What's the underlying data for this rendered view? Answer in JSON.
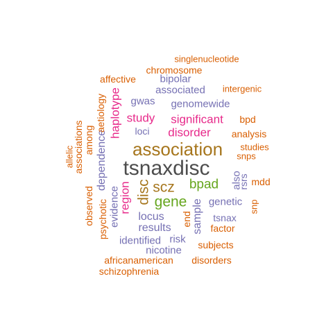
{
  "colors": {
    "dark": "#4d4d4d",
    "gold": "#a6761d",
    "green": "#66a61e",
    "magenta": "#e7298a",
    "purple": "#7570b3",
    "orange": "#d95f02"
  },
  "words": [
    {
      "text": "tsnaxdisc",
      "color": "dark"
    },
    {
      "text": "association",
      "color": "gold"
    },
    {
      "text": "scz",
      "color": "gold"
    },
    {
      "text": "disc",
      "color": "gold"
    },
    {
      "text": "gene",
      "color": "green"
    },
    {
      "text": "bpad",
      "color": "green"
    },
    {
      "text": "disorder",
      "color": "magenta"
    },
    {
      "text": "significant",
      "color": "magenta"
    },
    {
      "text": "study",
      "color": "magenta"
    },
    {
      "text": "haplotype",
      "color": "magenta"
    },
    {
      "text": "region",
      "color": "magenta"
    },
    {
      "text": "dependence",
      "color": "purple"
    },
    {
      "text": "evidence",
      "color": "purple"
    },
    {
      "text": "locus",
      "color": "purple"
    },
    {
      "text": "results",
      "color": "purple"
    },
    {
      "text": "identified",
      "color": "purple"
    },
    {
      "text": "risk",
      "color": "purple"
    },
    {
      "text": "nicotine",
      "color": "purple"
    },
    {
      "text": "sample",
      "color": "purple"
    },
    {
      "text": "genetic",
      "color": "purple"
    },
    {
      "text": "tsnax",
      "color": "purple"
    },
    {
      "text": "also",
      "color": "purple"
    },
    {
      "text": "rsrs",
      "color": "purple"
    },
    {
      "text": "loci",
      "color": "purple"
    },
    {
      "text": "gwas",
      "color": "purple"
    },
    {
      "text": "genomewide",
      "color": "purple"
    },
    {
      "text": "associated",
      "color": "purple"
    },
    {
      "text": "bipolar",
      "color": "purple"
    },
    {
      "text": "chromosome",
      "color": "orange"
    },
    {
      "text": "singlenucleotide",
      "color": "orange"
    },
    {
      "text": "affective",
      "color": "orange"
    },
    {
      "text": "intergenic",
      "color": "orange"
    },
    {
      "text": "bpd",
      "color": "orange"
    },
    {
      "text": "analysis",
      "color": "orange"
    },
    {
      "text": "studies",
      "color": "orange"
    },
    {
      "text": "snps",
      "color": "orange"
    },
    {
      "text": "mdd",
      "color": "orange"
    },
    {
      "text": "snp",
      "color": "orange"
    },
    {
      "text": "factor",
      "color": "orange"
    },
    {
      "text": "subjects",
      "color": "orange"
    },
    {
      "text": "end",
      "color": "orange"
    },
    {
      "text": "disorders",
      "color": "orange"
    },
    {
      "text": "africanamerican",
      "color": "orange"
    },
    {
      "text": "schizophrenia",
      "color": "orange"
    },
    {
      "text": "psychotic",
      "color": "orange"
    },
    {
      "text": "observed",
      "color": "orange"
    },
    {
      "text": "among",
      "color": "orange"
    },
    {
      "text": "aetiology",
      "color": "orange"
    },
    {
      "text": "associations",
      "color": "orange"
    },
    {
      "text": "allelic",
      "color": "orange"
    }
  ]
}
